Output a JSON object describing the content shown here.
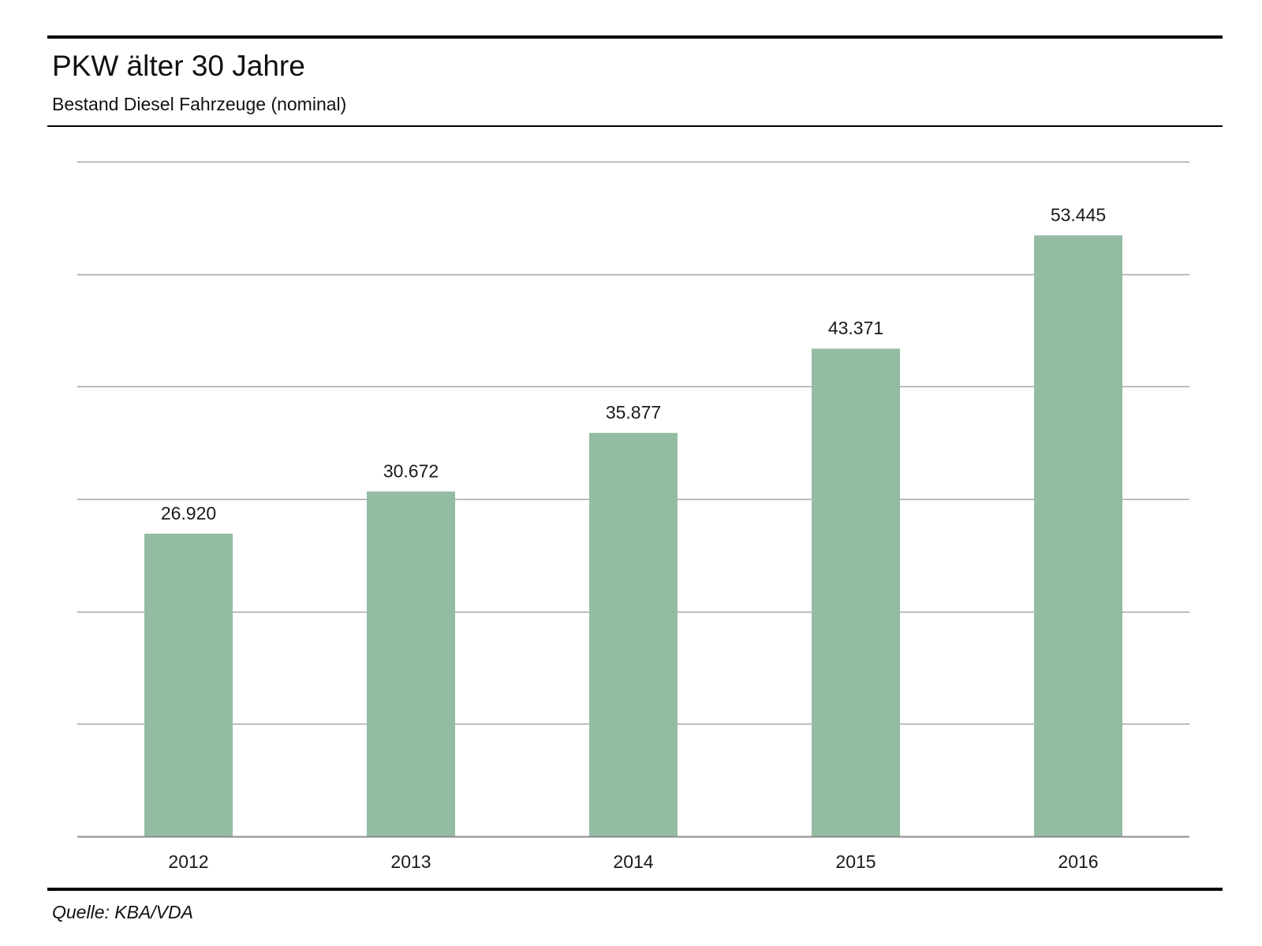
{
  "header": {
    "title": "PKW älter 30 Jahre",
    "subtitle": "Bestand Diesel Fahrzeuge (nominal)"
  },
  "footer": {
    "source": "Quelle: KBA/VDA"
  },
  "colors": {
    "bar": "#93bca3",
    "grid": "#a6a6a6",
    "axis": "#8c8c8c",
    "rule": "#000000"
  },
  "chart_data": {
    "type": "bar",
    "title": "PKW älter 30 Jahre",
    "subtitle": "Bestand Diesel Fahrzeuge (nominal)",
    "categories": [
      "2012",
      "2013",
      "2014",
      "2015",
      "2016"
    ],
    "values": [
      26920,
      30672,
      35877,
      43371,
      53445
    ],
    "value_labels": [
      "26.920",
      "30.672",
      "35.877",
      "43.371",
      "53.445"
    ],
    "xlabel": "",
    "ylabel": "",
    "ylim": [
      0,
      60000
    ],
    "y_gridlines": [
      0,
      10000,
      20000,
      30000,
      40000,
      50000,
      60000
    ],
    "y_tick_labels_shown": false,
    "grid": true,
    "legend": "none"
  }
}
